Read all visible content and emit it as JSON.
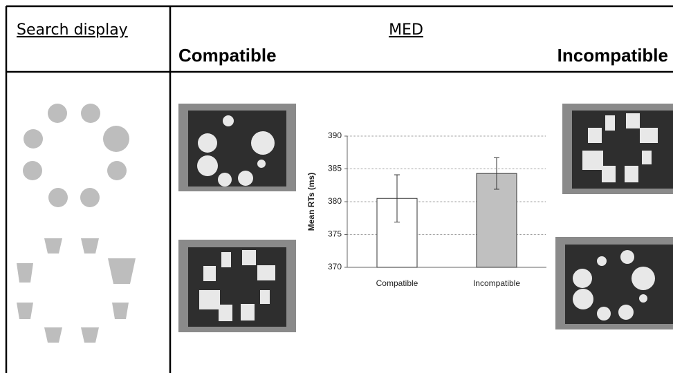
{
  "table": {
    "header": {
      "search_display": "Search display",
      "condition": "MED",
      "compatible": "Compatible",
      "incompatible": "Incompatible"
    }
  },
  "chart_data": {
    "type": "bar",
    "categories": [
      "Compatible",
      "Incompatible"
    ],
    "values": [
      380.5,
      384.3
    ],
    "errors": [
      3.6,
      2.4
    ],
    "colors": [
      "#ffffff",
      "#c0c0c0"
    ],
    "ylabel": "Mean RTs (ms)",
    "ylim": [
      370,
      390
    ],
    "yticks": [
      370,
      375,
      380,
      385,
      390
    ],
    "grid": true
  }
}
